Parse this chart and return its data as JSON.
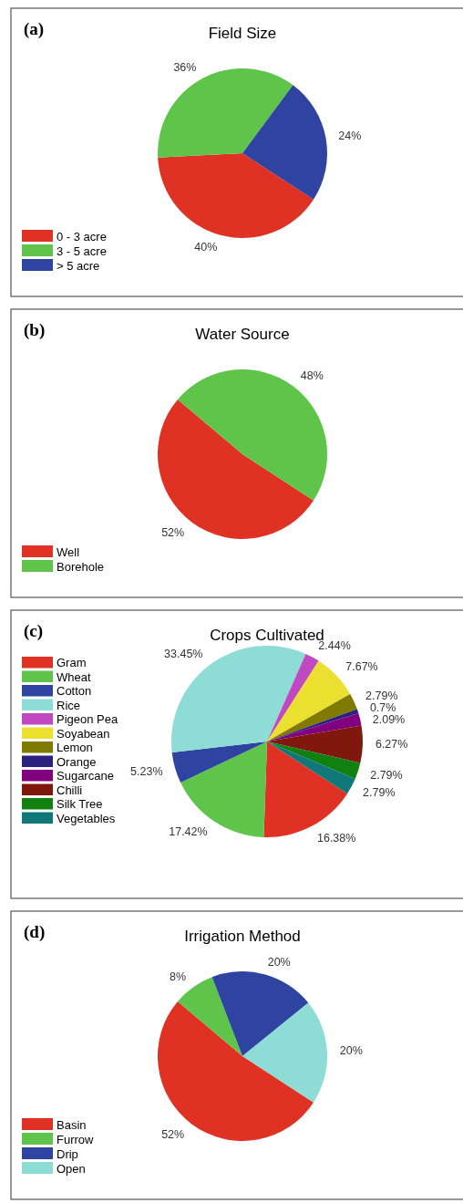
{
  "chart_data": [
    {
      "type": "pie",
      "title": "Field Size",
      "annotations": [
        "(a)"
      ],
      "categories": [
        "0 - 3 acre",
        "3 - 5 acre",
        "> 5 acre"
      ],
      "values": [
        40,
        36,
        24
      ],
      "colors": [
        "#e03224",
        "#5ec44a",
        "#2f44a0"
      ],
      "value_labels": [
        "40%",
        "36%",
        "24%"
      ],
      "legend": "bottom left"
    },
    {
      "type": "pie",
      "title": "Water Source",
      "annotations": [
        "(b)"
      ],
      "categories": [
        "Well",
        "Borehole"
      ],
      "values": [
        52,
        48
      ],
      "colors": [
        "#e03224",
        "#5ec44a"
      ],
      "value_labels": [
        "52%",
        "48%"
      ],
      "legend": "bottom left"
    },
    {
      "type": "pie",
      "title": "Crops Cultivated",
      "annotations": [
        "(c)"
      ],
      "categories": [
        "Gram",
        "Wheat",
        "Cotton",
        "Rice",
        "Pigeon Pea",
        "Soyabean",
        "Lemon",
        "Orange",
        "Sugarcane",
        "Chilli",
        "Silk Tree",
        "Vegetables"
      ],
      "values": [
        16.38,
        17.42,
        5.23,
        33.45,
        2.44,
        7.67,
        2.79,
        0.7,
        2.09,
        6.27,
        2.79,
        2.79
      ],
      "colors": [
        "#e03224",
        "#5ec44a",
        "#2f44a0",
        "#8edcd6",
        "#c048c0",
        "#ebe030",
        "#807a00",
        "#2a2080",
        "#800080",
        "#801810",
        "#108010",
        "#107878"
      ],
      "value_labels": [
        "16.38%",
        "17.42%",
        "5.23%",
        "33.45%",
        "2.44%",
        "7.67%",
        "2.79%",
        "0.7%",
        "2.09%",
        "6.27%",
        "2.79%",
        "2.79%"
      ],
      "legend": "left"
    },
    {
      "type": "pie",
      "title": "Irrigation Method",
      "annotations": [
        "(d)"
      ],
      "categories": [
        "Basin",
        "Furrow",
        "Drip",
        "Open"
      ],
      "values": [
        52,
        8,
        20,
        20
      ],
      "colors": [
        "#e03224",
        "#5ec44a",
        "#2f44a0",
        "#8edcd6"
      ],
      "value_labels": [
        "52%",
        "8%",
        "20%",
        "20%"
      ],
      "legend": "bottom left"
    }
  ]
}
